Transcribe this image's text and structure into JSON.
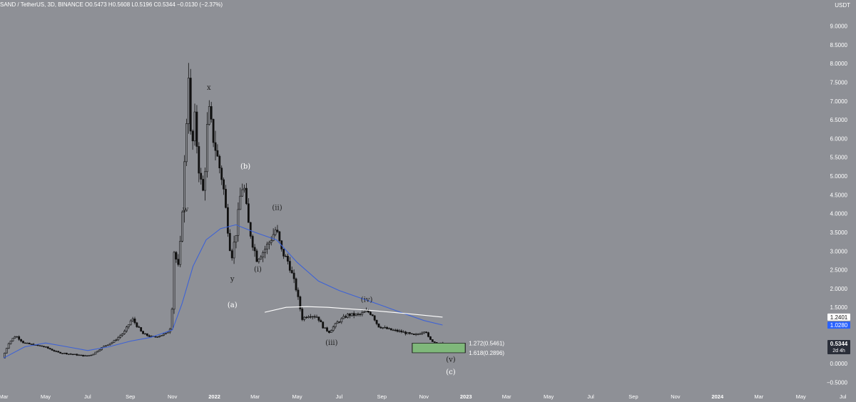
{
  "header": {
    "symbol_line": "SAND / TetherUS, 3D, BINANCE  O0.5473  H0.5608  L0.5196  C0.5344  −0.0130 (−2.37%)",
    "currency": "USDT"
  },
  "colors": {
    "background": "#8e9096",
    "candle": "#111111",
    "ma_blue": "#3d62d6",
    "ma_white": "#ffffff",
    "target_box": "#7fb87a",
    "price_tag_dark": "#2a2e39",
    "price_tag_blue": "#2962ff"
  },
  "chart_data": {
    "type": "candlestick",
    "title": "SAND / TetherUS, 3D, BINANCE",
    "ylabel": "USDT",
    "ylim": [
      -0.5,
      9.0
    ],
    "y_ticks": [
      "9.0000",
      "8.5000",
      "8.0000",
      "7.5000",
      "7.0000",
      "6.5000",
      "6.0000",
      "5.5000",
      "5.0000",
      "4.5000",
      "4.0000",
      "3.5000",
      "3.0000",
      "2.5000",
      "2.0000",
      "1.5000",
      "1.0000",
      "0.5000",
      "0.0000",
      "−0.5000"
    ],
    "x_ticks": [
      {
        "label": "Mar",
        "date": "2021-03-01"
      },
      {
        "label": "May",
        "date": "2021-05-01"
      },
      {
        "label": "Jul",
        "date": "2021-07-01"
      },
      {
        "label": "Sep",
        "date": "2021-09-01"
      },
      {
        "label": "Nov",
        "date": "2021-11-01"
      },
      {
        "label": "2022",
        "date": "2022-01-01",
        "bold": true
      },
      {
        "label": "Mar",
        "date": "2022-03-01"
      },
      {
        "label": "May",
        "date": "2022-05-01"
      },
      {
        "label": "Jul",
        "date": "2022-07-01"
      },
      {
        "label": "Sep",
        "date": "2022-09-01"
      },
      {
        "label": "Nov",
        "date": "2022-11-01"
      },
      {
        "label": "2023",
        "date": "2023-01-01",
        "bold": true
      },
      {
        "label": "Mar",
        "date": "2023-03-01"
      },
      {
        "label": "May",
        "date": "2023-05-01"
      },
      {
        "label": "Jul",
        "date": "2023-07-01"
      },
      {
        "label": "Sep",
        "date": "2023-09-01"
      },
      {
        "label": "Nov",
        "date": "2023-11-01"
      },
      {
        "label": "2024",
        "date": "2024-01-01",
        "bold": true
      },
      {
        "label": "Mar",
        "date": "2024-03-01"
      },
      {
        "label": "May",
        "date": "2024-05-01"
      },
      {
        "label": "Jul",
        "date": "2024-07-01"
      }
    ],
    "x_range": [
      "2021-03-01",
      "2024-07-20"
    ],
    "price_path": [
      [
        "2021-03-01",
        0.15
      ],
      [
        "2021-03-10",
        0.55
      ],
      [
        "2021-03-20",
        0.75
      ],
      [
        "2021-04-01",
        0.55
      ],
      [
        "2021-04-15",
        0.5
      ],
      [
        "2021-05-01",
        0.45
      ],
      [
        "2021-05-20",
        0.3
      ],
      [
        "2021-06-10",
        0.25
      ],
      [
        "2021-07-01",
        0.2
      ],
      [
        "2021-07-10",
        0.25
      ],
      [
        "2021-07-25",
        0.45
      ],
      [
        "2021-08-10",
        0.6
      ],
      [
        "2021-08-25",
        0.85
      ],
      [
        "2021-09-05",
        1.2
      ],
      [
        "2021-09-20",
        0.8
      ],
      [
        "2021-10-05",
        0.7
      ],
      [
        "2021-10-25",
        0.8
      ],
      [
        "2021-11-01",
        1.0
      ],
      [
        "2021-11-05",
        3.0
      ],
      [
        "2021-11-12",
        2.5
      ],
      [
        "2021-11-18",
        4.5
      ],
      [
        "2021-11-23",
        6.5
      ],
      [
        "2021-11-26",
        7.8
      ],
      [
        "2021-11-30",
        5.5
      ],
      [
        "2021-12-05",
        6.5
      ],
      [
        "2021-12-12",
        5.0
      ],
      [
        "2021-12-18",
        4.5
      ],
      [
        "2021-12-22",
        6.0
      ],
      [
        "2021-12-25",
        6.8
      ],
      [
        "2022-01-01",
        6.0
      ],
      [
        "2022-01-08",
        5.4
      ],
      [
        "2022-01-15",
        4.8
      ],
      [
        "2022-01-22",
        3.6
      ],
      [
        "2022-01-27",
        2.8
      ],
      [
        "2022-02-03",
        3.5
      ],
      [
        "2022-02-10",
        4.6
      ],
      [
        "2022-02-14",
        4.8
      ],
      [
        "2022-02-20",
        3.8
      ],
      [
        "2022-02-27",
        3.2
      ],
      [
        "2022-03-05",
        2.8
      ],
      [
        "2022-03-15",
        3.0
      ],
      [
        "2022-03-25",
        3.3
      ],
      [
        "2022-04-02",
        3.6
      ],
      [
        "2022-04-10",
        3.0
      ],
      [
        "2022-04-20",
        2.7
      ],
      [
        "2022-05-01",
        2.0
      ],
      [
        "2022-05-10",
        1.2
      ],
      [
        "2022-05-20",
        1.3
      ],
      [
        "2022-06-01",
        1.25
      ],
      [
        "2022-06-10",
        0.95
      ],
      [
        "2022-06-18",
        0.85
      ],
      [
        "2022-06-30",
        1.1
      ],
      [
        "2022-07-15",
        1.3
      ],
      [
        "2022-08-01",
        1.3
      ],
      [
        "2022-08-12",
        1.4
      ],
      [
        "2022-08-20",
        1.3
      ],
      [
        "2022-08-28",
        1.0
      ],
      [
        "2022-09-15",
        0.9
      ],
      [
        "2022-10-01",
        0.85
      ],
      [
        "2022-10-20",
        0.75
      ],
      [
        "2022-11-01",
        0.85
      ],
      [
        "2022-11-05",
        0.9
      ],
      [
        "2022-11-10",
        0.65
      ],
      [
        "2022-11-20",
        0.55
      ],
      [
        "2022-11-28",
        0.5344
      ]
    ],
    "series": [
      {
        "kind": "moving_average",
        "color": "blue",
        "points": [
          [
            "2021-03-01",
            0.15
          ],
          [
            "2021-04-01",
            0.45
          ],
          [
            "2021-05-01",
            0.55
          ],
          [
            "2021-06-01",
            0.45
          ],
          [
            "2021-07-01",
            0.35
          ],
          [
            "2021-08-01",
            0.45
          ],
          [
            "2021-09-01",
            0.6
          ],
          [
            "2021-10-01",
            0.7
          ],
          [
            "2021-11-01",
            0.9
          ],
          [
            "2021-11-15",
            1.6
          ],
          [
            "2021-12-01",
            2.6
          ],
          [
            "2021-12-20",
            3.3
          ],
          [
            "2022-01-10",
            3.6
          ],
          [
            "2022-02-01",
            3.7
          ],
          [
            "2022-03-01",
            3.5
          ],
          [
            "2022-04-01",
            3.3
          ],
          [
            "2022-05-01",
            2.7
          ],
          [
            "2022-06-01",
            2.2
          ],
          [
            "2022-07-01",
            1.95
          ],
          [
            "2022-08-01",
            1.75
          ],
          [
            "2022-09-01",
            1.55
          ],
          [
            "2022-10-01",
            1.35
          ],
          [
            "2022-11-01",
            1.15
          ],
          [
            "2022-11-28",
            1.03
          ]
        ]
      },
      {
        "kind": "moving_average",
        "color": "white",
        "points": [
          [
            "2022-03-15",
            1.37
          ],
          [
            "2022-04-15",
            1.5
          ],
          [
            "2022-05-15",
            1.52
          ],
          [
            "2022-06-15",
            1.5
          ],
          [
            "2022-07-15",
            1.46
          ],
          [
            "2022-08-15",
            1.42
          ],
          [
            "2022-09-15",
            1.37
          ],
          [
            "2022-10-15",
            1.32
          ],
          [
            "2022-11-28",
            1.24
          ]
        ]
      }
    ],
    "wave_labels": [
      {
        "text": "x",
        "date": "2021-12-24",
        "price": 7.3,
        "color": "#222222"
      },
      {
        "text": "w",
        "date": "2021-11-20",
        "price": 4.05,
        "color": "#222222"
      },
      {
        "text": "y",
        "date": "2022-01-27",
        "price": 2.2,
        "color": "#222222"
      },
      {
        "text": "(b)",
        "date": "2022-02-15",
        "price": 5.2,
        "color": "#ffffff"
      },
      {
        "text": "(a)",
        "date": "2022-01-27",
        "price": 1.5,
        "color": "#ffffff"
      },
      {
        "text": "(ii)",
        "date": "2022-04-02",
        "price": 4.1,
        "color": "#222222"
      },
      {
        "text": "(i)",
        "date": "2022-03-05",
        "price": 2.45,
        "color": "#222222"
      },
      {
        "text": "(iv)",
        "date": "2022-08-10",
        "price": 1.65,
        "color": "#222222"
      },
      {
        "text": "(iii)",
        "date": "2022-06-20",
        "price": 0.5,
        "color": "#222222"
      },
      {
        "text": "(v)",
        "date": "2022-12-10",
        "price": 0.05,
        "color": "#222222"
      },
      {
        "text": "(c)",
        "date": "2022-12-10",
        "price": -0.28,
        "color": "#ffffff"
      }
    ],
    "target_zone": {
      "start": "2022-10-15",
      "end": "2022-12-31",
      "levels": [
        {
          "price": 0.5461,
          "label": "1.272(0.5461)"
        },
        {
          "price": 0.2896,
          "label": "1.618(0.2896)"
        }
      ]
    },
    "price_tags": [
      {
        "value": "1.2401",
        "price": 1.2401,
        "style": "white"
      },
      {
        "value": "1.0280",
        "price": 1.028,
        "style": "blue"
      },
      {
        "value": "0.5344",
        "price": 0.5344,
        "style": "dark",
        "sub": "2d 4h"
      }
    ]
  }
}
